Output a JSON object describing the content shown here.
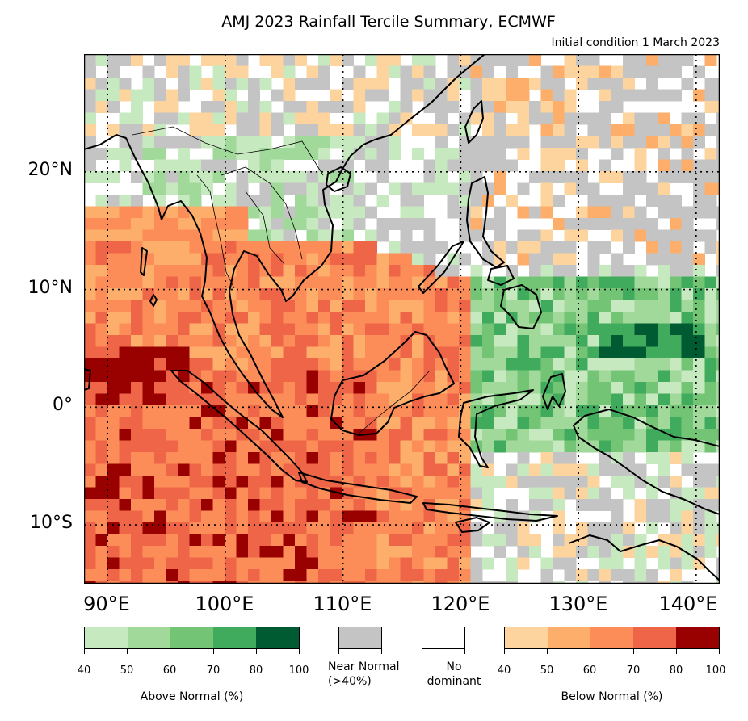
{
  "title": "AMJ 2023 Rainfall Tercile Summary, ECMWF",
  "subtitle": "Initial condition 1 March 2023",
  "lat_labels": [
    "20°N",
    "10°N",
    "0°",
    "10°S"
  ],
  "lon_labels": [
    "90°E",
    "100°E",
    "110°E",
    "120°E",
    "130°E",
    "140°E"
  ],
  "legend": {
    "above": {
      "title": "Above Normal (%)",
      "ticks": [
        "40",
        "50",
        "60",
        "70",
        "80",
        "100"
      ],
      "colors": [
        "#c7e9c0",
        "#a1d99b",
        "#74c476",
        "#41ab5d",
        "#005a32"
      ]
    },
    "near_normal": {
      "label_line1": "Near Normal",
      "label_line2": "(>40%)",
      "color": "#c4c4c4"
    },
    "no_dominant": {
      "label_line1": "No",
      "label_line2": "dominant",
      "color": "#ffffff"
    },
    "below": {
      "title": "Below Normal (%)",
      "ticks": [
        "40",
        "50",
        "60",
        "70",
        "80",
        "100"
      ],
      "colors": [
        "#fdd49e",
        "#fdae6b",
        "#fc8d59",
        "#ef6548",
        "#990000"
      ]
    }
  },
  "map": {
    "extent": {
      "lon_min": 88,
      "lon_max": 142,
      "lat_min": -15,
      "lat_max": 30
    },
    "gridlines_lon": [
      90,
      100,
      110,
      120,
      130,
      140
    ],
    "gridlines_lat": [
      20,
      10,
      0,
      -10
    ]
  }
}
